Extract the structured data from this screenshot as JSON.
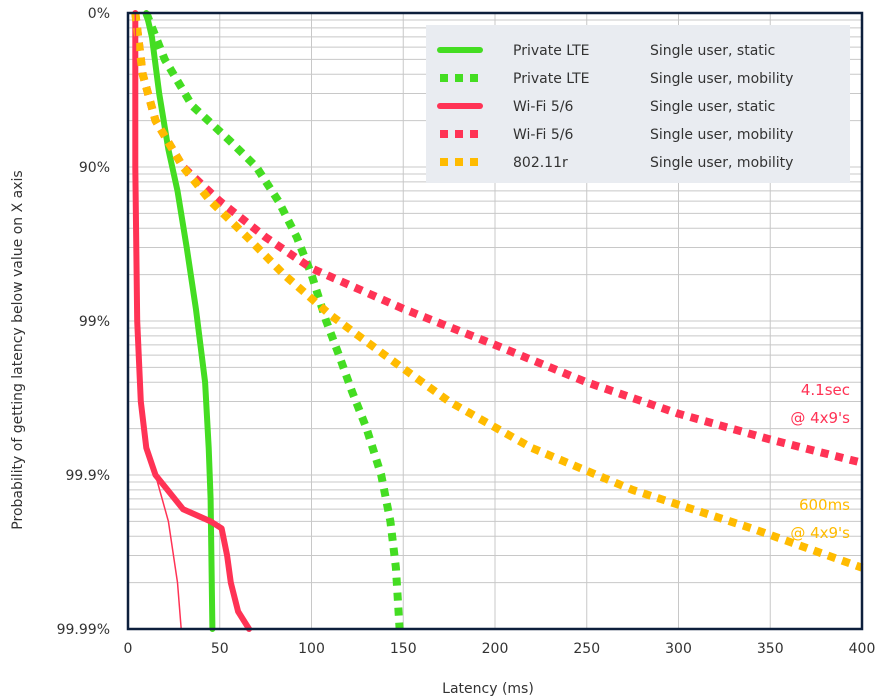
{
  "chart_data": {
    "type": "line",
    "title": "",
    "xlabel": "Latency (ms)",
    "ylabel": "Probability of getting latency below value on X axis",
    "xlim": [
      0,
      400
    ],
    "x_ticks": [
      0,
      50,
      100,
      150,
      200,
      250,
      300,
      350,
      400
    ],
    "y_scale": "log-nines",
    "y_ticks": [
      {
        "value": 0,
        "label": "0%"
      },
      {
        "value": 90,
        "label": "90%"
      },
      {
        "value": 99,
        "label": "99%"
      },
      {
        "value": 99.9,
        "label": "99.9%"
      },
      {
        "value": 99.99,
        "label": "99.99%"
      }
    ],
    "grid": true,
    "legend_position": "top-right",
    "series": [
      {
        "name": "Private LTE",
        "desc": "Single user, static",
        "color": "#44dd22",
        "style": "solid",
        "points": [
          [
            10,
            0
          ],
          [
            13,
            30
          ],
          [
            17,
            70
          ],
          [
            22,
            87
          ],
          [
            27,
            93
          ],
          [
            32,
            97
          ],
          [
            37,
            98.8
          ],
          [
            42,
            99.6
          ],
          [
            44,
            99.85
          ],
          [
            45,
            99.93
          ],
          [
            46,
            99.99
          ]
        ]
      },
      {
        "name": "Private LTE",
        "desc": "Single user, mobility",
        "color": "#44dd22",
        "style": "dotted",
        "points": [
          [
            10,
            0
          ],
          [
            20,
            50
          ],
          [
            35,
            75
          ],
          [
            55,
            85
          ],
          [
            70,
            90
          ],
          [
            82,
            94
          ],
          [
            92,
            96.5
          ],
          [
            100,
            98
          ],
          [
            108,
            99
          ],
          [
            115,
            99.4
          ],
          [
            122,
            99.65
          ],
          [
            130,
            99.8
          ],
          [
            138,
            99.9
          ],
          [
            143,
            99.95
          ],
          [
            146,
            99.975
          ],
          [
            148,
            99.99
          ]
        ]
      },
      {
        "name": "Wi-Fi 5/6",
        "desc": "Single user, static",
        "color": "#ff3355",
        "style": "solid",
        "points": [
          [
            4,
            0
          ],
          [
            4,
            90
          ],
          [
            5,
            99
          ],
          [
            7,
            99.7
          ],
          [
            10,
            99.85
          ],
          [
            15,
            99.9
          ],
          [
            30,
            99.94
          ],
          [
            45,
            99.95
          ],
          [
            51,
            99.955
          ],
          [
            54,
            99.97
          ],
          [
            56,
            99.98
          ],
          [
            60,
            99.987
          ],
          [
            66,
            99.99
          ]
        ]
      },
      {
        "name": "Wi-Fi 5/6",
        "desc": "Single user, mobility",
        "color": "#ff3355",
        "style": "dotted",
        "points": [
          [
            4,
            0
          ],
          [
            8,
            60
          ],
          [
            15,
            80
          ],
          [
            30,
            90
          ],
          [
            50,
            94
          ],
          [
            75,
            96.5
          ],
          [
            100,
            97.8
          ],
          [
            150,
            98.8
          ],
          [
            200,
            99.3
          ],
          [
            250,
            99.6
          ],
          [
            300,
            99.75
          ],
          [
            350,
            99.83
          ],
          [
            400,
            99.88
          ]
        ]
      },
      {
        "name": "802.11r",
        "desc": "Single user, mobility",
        "color": "#ffbb00",
        "style": "dotted",
        "points": [
          [
            4,
            0
          ],
          [
            8,
            60
          ],
          [
            15,
            80
          ],
          [
            30,
            90
          ],
          [
            45,
            94
          ],
          [
            65,
            96.5
          ],
          [
            85,
            98
          ],
          [
            110,
            98.9
          ],
          [
            140,
            99.4
          ],
          [
            175,
            99.7
          ],
          [
            220,
            99.85
          ],
          [
            275,
            99.92
          ],
          [
            340,
            99.955
          ],
          [
            400,
            99.975
          ]
        ]
      }
    ],
    "annotations": [
      {
        "line1": "4.1sec",
        "line2": "@ 4x9's",
        "color": "#ff3355"
      },
      {
        "line1": "600ms",
        "line2": "@ 4x9's",
        "color": "#ffbb00"
      }
    ]
  }
}
